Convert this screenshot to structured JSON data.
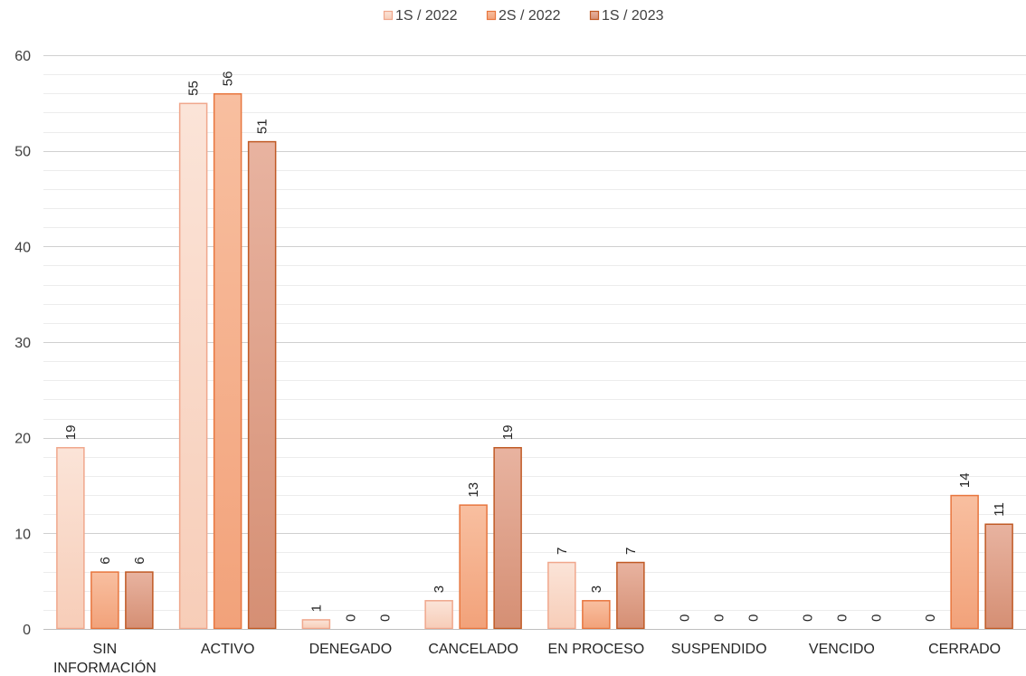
{
  "chart_data": {
    "type": "bar",
    "categories": [
      "SIN INFORMACIÓN",
      "ACTIVO",
      "DENEGADO",
      "CANCELADO",
      "EN PROCESO",
      "SUSPENDIDO",
      "VENCIDO",
      "CERRADO"
    ],
    "category_lines": [
      [
        "SIN",
        "INFORMACIÓN"
      ],
      [
        "ACTIVO"
      ],
      [
        "DENEGADO"
      ],
      [
        "CANCELADO"
      ],
      [
        "EN PROCESO"
      ],
      [
        "SUSPENDIDO"
      ],
      [
        "VENCIDO"
      ],
      [
        "CERRADO"
      ]
    ],
    "series": [
      {
        "name": "1S / 2022",
        "values": [
          19,
          55,
          1,
          3,
          7,
          0,
          0,
          0
        ],
        "fill_top": "#fbe4d8",
        "fill_bottom": "#f7cdb8",
        "stroke": "#f0a78c"
      },
      {
        "name": "2S / 2022",
        "values": [
          6,
          56,
          0,
          13,
          3,
          0,
          0,
          14
        ],
        "fill_top": "#f8bfa0",
        "fill_bottom": "#f2a27a",
        "stroke": "#e8763e"
      },
      {
        "name": "1S / 2023",
        "values": [
          6,
          51,
          0,
          19,
          7,
          0,
          0,
          11
        ],
        "fill_top": "#e8b3a0",
        "fill_bottom": "#d58f74",
        "stroke": "#c05a25"
      }
    ],
    "value_labels": [
      [
        "19",
        "55",
        "1",
        "3",
        "7",
        "0",
        "0",
        "0"
      ],
      [
        "6",
        "56",
        "0",
        "13",
        "3",
        "0",
        "0",
        "14"
      ],
      [
        "6",
        "51",
        "0",
        "19",
        "7",
        "0",
        "0",
        "11"
      ]
    ],
    "yticks": [
      "0",
      "10",
      "20",
      "30",
      "40",
      "50",
      "60"
    ],
    "ylim": [
      0,
      60
    ],
    "grid": true,
    "legend": "top",
    "xlabel": "",
    "ylabel": ""
  }
}
